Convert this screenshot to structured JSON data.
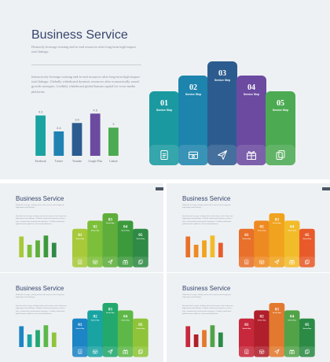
{
  "main": {
    "title": "Business Service",
    "paragraph1": "Distinctly leverage existing end-to-end resources after long-term high-impact total linkage.",
    "paragraph2": "Interactively leverage existing end-to-end resources after long-term high-impact total linkage. Globally whiteboard dynamic resources after economically sound growth strategies. Credibly whiteboard global human capital for cross-media platforms.",
    "steps": [
      {
        "num": "01",
        "label": "Service Step",
        "icon": "document-icon",
        "color": "#1a9aa0"
      },
      {
        "num": "02",
        "label": "Service Step",
        "icon": "box-icon",
        "color": "#1d84ad"
      },
      {
        "num": "03",
        "label": "Service Step",
        "icon": "paper-plane-icon",
        "color": "#2c5c8f"
      },
      {
        "num": "04",
        "label": "Service Step",
        "icon": "gift-icon",
        "color": "#6b4aa0"
      },
      {
        "num": "05",
        "label": "Service Step",
        "icon": "copy-icon",
        "color": "#4caa52"
      }
    ]
  },
  "chart_data": {
    "type": "bar",
    "categories": [
      "Facebook",
      "Twitter",
      "Youtube",
      "Google Plus",
      "Linked"
    ],
    "values": [
      4.3,
      2.6,
      3.5,
      4.5,
      3.0
    ],
    "value_labels": [
      "4.3",
      "2.6",
      "3.5",
      "4.5",
      "3"
    ],
    "colors": [
      "#1aa3a3",
      "#1f82b3",
      "#2c5c8f",
      "#6b4aa0",
      "#4caa52"
    ],
    "ylim": [
      0,
      5.2
    ],
    "grid": false
  },
  "thumbnails": [
    {
      "title": "Business Service",
      "colors": [
        "#a7c93a",
        "#7cbf3a",
        "#5fae3c",
        "#3d9a3c",
        "#2f8a45"
      ]
    },
    {
      "title": "Business Service",
      "colors": [
        "#e8702a",
        "#ee8a22",
        "#f0a31e",
        "#f2bb2a",
        "#e85a2a"
      ]
    },
    {
      "title": "Business Service",
      "colors": [
        "#1d84c6",
        "#1aa3a3",
        "#23a86e",
        "#5db848",
        "#8fc43a"
      ]
    },
    {
      "title": "Business Service",
      "colors": [
        "#c8283c",
        "#b01f2c",
        "#e2792e",
        "#52a348",
        "#2b8a46"
      ]
    }
  ]
}
